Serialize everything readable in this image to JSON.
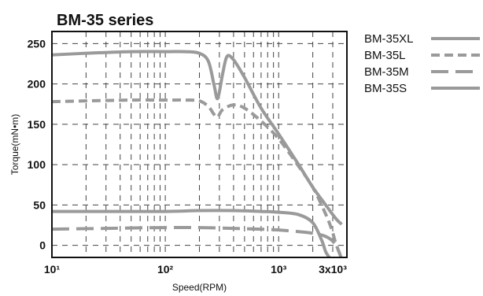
{
  "chart_data": {
    "type": "line",
    "title": "BM-35 series",
    "xlabel": "Speed(RPM)",
    "ylabel": "Torque(mN•m)",
    "x_scale": "log",
    "xlim": [
      10,
      4000
    ],
    "ylim": [
      -15,
      265
    ],
    "x_ticks": [
      {
        "value": 10,
        "label": "10¹"
      },
      {
        "value": 100,
        "label": "10²"
      },
      {
        "value": 1000,
        "label": "10³"
      },
      {
        "value": 3000,
        "label": "3x10³"
      }
    ],
    "y_ticks": [
      0,
      50,
      100,
      150,
      200,
      250
    ],
    "grid": true,
    "legend_position": "right",
    "colors": {
      "series": "#9a9a9a",
      "grid": "#444444",
      "frame": "#111111"
    },
    "series": [
      {
        "name": "BM-35XL",
        "dash": "solid",
        "x": [
          10,
          20,
          50,
          100,
          150,
          200,
          240,
          270,
          290,
          320,
          350,
          400,
          500,
          700,
          1000,
          1500,
          2000,
          2600,
          3200,
          3600
        ],
        "y": [
          236,
          238,
          240,
          240,
          240,
          238,
          228,
          198,
          182,
          212,
          234,
          230,
          208,
          170,
          138,
          100,
          72,
          50,
          33,
          26
        ]
      },
      {
        "name": "BM-35L",
        "dash": "dash",
        "x": [
          10,
          20,
          50,
          100,
          150,
          200,
          240,
          270,
          290,
          320,
          400,
          500,
          700,
          1000,
          1500,
          2000,
          2500,
          2900,
          3200,
          3450,
          3550
        ],
        "y": [
          178,
          179,
          180,
          180,
          180,
          179,
          172,
          162,
          159,
          168,
          174,
          170,
          154,
          132,
          98,
          72,
          44,
          22,
          2,
          -10,
          -15
        ]
      },
      {
        "name": "BM-35M",
        "dash": "longdash",
        "x": [
          10,
          30,
          100,
          200,
          400,
          700,
          1000,
          1500,
          2000,
          2500,
          2900,
          3200,
          3400,
          3550
        ],
        "y": [
          20,
          21,
          22,
          22,
          21,
          20,
          19,
          17,
          15,
          12,
          7,
          0,
          -8,
          -15
        ]
      },
      {
        "name": "BM-35S",
        "dash": "solid",
        "x": [
          10,
          30,
          100,
          200,
          400,
          700,
          1000,
          1500,
          2000,
          2400,
          2600,
          2800
        ],
        "y": [
          42,
          42,
          42,
          43,
          43,
          42,
          41,
          38,
          28,
          6,
          -8,
          -15
        ]
      }
    ]
  }
}
